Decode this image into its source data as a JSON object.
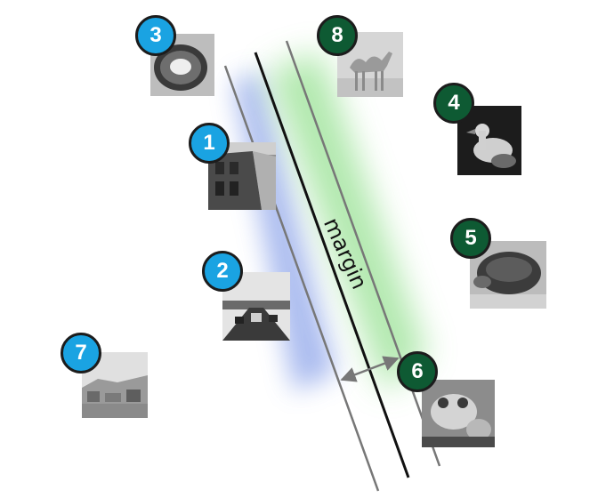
{
  "diagram": {
    "margin_label": "margin",
    "colors": {
      "class_a": "#1aa3e2",
      "class_b": "#0e5a33",
      "boundary_line": "#111111",
      "margin_lines": "#777777",
      "blue_glow": "#8fa6ea",
      "green_glow": "#9ee39a"
    },
    "points": [
      {
        "label": "1",
        "class": "blue",
        "image": "building-street-photo"
      },
      {
        "label": "2",
        "class": "blue",
        "image": "highway-traffic-photo"
      },
      {
        "label": "3",
        "class": "blue",
        "image": "kiwi-slice-photo"
      },
      {
        "label": "4",
        "class": "green",
        "image": "duck-photo"
      },
      {
        "label": "5",
        "class": "green",
        "image": "tortoise-photo"
      },
      {
        "label": "6",
        "class": "green",
        "image": "frog-photo"
      },
      {
        "label": "7",
        "class": "blue",
        "image": "city-skyline-photo"
      },
      {
        "label": "8",
        "class": "green",
        "image": "camel-photo"
      }
    ]
  }
}
